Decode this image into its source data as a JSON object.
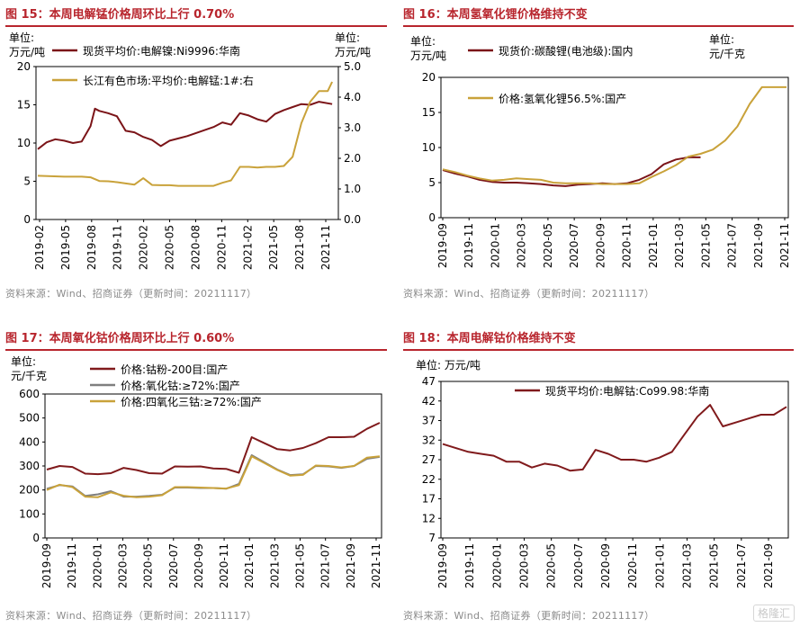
{
  "source": "资料来源：Wind、招商证券（更新时间：20211117）",
  "watermark": "格隆汇",
  "colors": {
    "title": "#b8252d",
    "dark_red": "#7b1418",
    "gold": "#c9a23a",
    "grey": "#7f7f7f",
    "brown_red": "#801a1c"
  },
  "chart_data": [
    {
      "id": "fig15",
      "type": "line",
      "title": "图 15：本周电解锰价格周环比上行 0.70%",
      "unit_left": [
        "单位:",
        "万元/吨"
      ],
      "unit_right": [
        "单位:",
        "万元/吨"
      ],
      "x_ticks": [
        "2019-02",
        "2019-05",
        "2019-08",
        "2019-11",
        "2020-02",
        "2020-05",
        "2020-08",
        "2020-11",
        "2021-02",
        "2021-05",
        "2021-08",
        "2021-11"
      ],
      "ylim": [
        0,
        20
      ],
      "y_ticks": [
        0,
        5,
        10,
        15,
        20
      ],
      "y2lim": [
        0,
        5
      ],
      "y2_ticks": [
        "0.0",
        "1.0",
        "2.0",
        "3.0",
        "4.0",
        "5.0"
      ],
      "series": [
        {
          "name": "现货平均价:电解镍:Ni9996:华南",
          "axis": "left",
          "color": "#7b1418",
          "x": [
            0,
            1,
            2,
            3,
            4,
            5,
            6,
            6.5,
            7,
            8,
            9,
            10,
            11,
            12,
            13,
            14,
            15,
            16,
            17,
            18,
            19,
            20,
            21,
            22,
            23,
            24,
            25,
            26,
            27,
            28,
            29,
            30,
            31,
            32,
            33.5
          ],
          "y": [
            9.2,
            10.1,
            10.5,
            10.3,
            10.0,
            10.2,
            12.2,
            14.5,
            14.2,
            13.9,
            13.5,
            11.6,
            11.4,
            10.8,
            10.4,
            9.6,
            10.3,
            10.6,
            10.9,
            11.3,
            11.7,
            12.1,
            12.7,
            12.4,
            13.9,
            13.6,
            13.1,
            12.8,
            13.8,
            14.3,
            14.7,
            15.1,
            15.0,
            15.4,
            15.1
          ]
        },
        {
          "name": "长江有色市场:平均价:电解锰:1#:右",
          "axis": "right",
          "color": "#c9a23a",
          "x": [
            0,
            3,
            5,
            6,
            7,
            8,
            9,
            10,
            11,
            12,
            13,
            14,
            15,
            16,
            17,
            18,
            19,
            20,
            21,
            22,
            23,
            24,
            25,
            26,
            27,
            28,
            29,
            30,
            31,
            32,
            33,
            33.5
          ],
          "y": [
            1.43,
            1.4,
            1.4,
            1.38,
            1.26,
            1.25,
            1.22,
            1.18,
            1.14,
            1.35,
            1.13,
            1.12,
            1.12,
            1.1,
            1.1,
            1.1,
            1.1,
            1.1,
            1.2,
            1.28,
            1.72,
            1.72,
            1.7,
            1.72,
            1.72,
            1.75,
            2.05,
            3.15,
            3.85,
            4.2,
            4.2,
            4.5
          ]
        }
      ]
    },
    {
      "id": "fig16",
      "type": "line",
      "title": "图 16：本周氢氧化锂价格维持不变",
      "unit_left": [
        "单位:",
        "万元/吨"
      ],
      "unit_right": [
        "单位:",
        "元/千克"
      ],
      "x_ticks": [
        "2019-09",
        "2019-11",
        "2020-01",
        "2020-03",
        "2020-05",
        "2020-07",
        "2020-09",
        "2020-11",
        "2021-01",
        "2021-03",
        "2021-05",
        "2021-07",
        "2021-09",
        "2021-11"
      ],
      "ylim": [
        0,
        20
      ],
      "y_ticks": [
        0,
        5,
        10,
        15,
        20
      ],
      "series": [
        {
          "name": "现货价:碳酸锂(电池级):国内",
          "color": "#7b1418",
          "x": [
            0,
            1,
            2,
            3,
            4,
            5,
            6,
            7,
            8,
            9,
            10,
            11,
            12,
            13,
            14,
            15,
            16,
            17,
            18,
            19,
            20,
            21
          ],
          "y": [
            6.8,
            6.3,
            5.9,
            5.4,
            5.1,
            5.0,
            5.0,
            4.9,
            4.8,
            4.6,
            4.5,
            4.7,
            4.8,
            4.9,
            4.8,
            4.9,
            5.4,
            6.2,
            7.6,
            8.3,
            8.6,
            8.6
          ]
        },
        {
          "name": "价格:氢氧化锂56.5%:国产",
          "color": "#c9a23a",
          "x": [
            0,
            1,
            2,
            3,
            4,
            5,
            6,
            7,
            8,
            9,
            10,
            11,
            12,
            13,
            14,
            15,
            16,
            17,
            18,
            19,
            20,
            21,
            22,
            23,
            24,
            25,
            26,
            27,
            28
          ],
          "y": [
            6.9,
            6.5,
            6.0,
            5.6,
            5.3,
            5.4,
            5.6,
            5.5,
            5.4,
            5.0,
            4.9,
            4.9,
            4.9,
            4.8,
            4.8,
            4.8,
            4.9,
            5.8,
            6.6,
            7.5,
            8.7,
            9.1,
            9.7,
            11.0,
            13.0,
            16.2,
            18.6,
            18.6,
            18.6
          ]
        }
      ]
    },
    {
      "id": "fig17",
      "type": "line",
      "title": "图 17：本周氧化钴价格周环比上行 0.60%",
      "unit_left": [
        "单位:",
        "元/千克"
      ],
      "x_ticks": [
        "2019-09",
        "2019-11",
        "2020-01",
        "2020-03",
        "2020-05",
        "2020-07",
        "2020-09",
        "2020-11",
        "2021-01",
        "2021-03",
        "2021-05",
        "2021-07",
        "2021-09",
        "2021-11"
      ],
      "ylim": [
        0,
        600
      ],
      "y_ticks": [
        0,
        100,
        200,
        300,
        400,
        500,
        600
      ],
      "series": [
        {
          "name": "价格:钴粉-200目:国产",
          "color": "#801a1c",
          "x": [
            0,
            1,
            2,
            3,
            4,
            5,
            6,
            7,
            8,
            9,
            10,
            11,
            12,
            13,
            14,
            15,
            16,
            17,
            18,
            19,
            20,
            21,
            22,
            23,
            24,
            25,
            26
          ],
          "y": [
            285,
            300,
            296,
            268,
            266,
            270,
            292,
            283,
            270,
            268,
            298,
            297,
            298,
            290,
            288,
            272,
            420,
            395,
            370,
            365,
            375,
            395,
            420,
            420,
            422,
            455,
            480
          ]
        },
        {
          "name": "价格:氧化钴:≥72%:国产",
          "color": "#7f7f7f",
          "x": [
            0,
            1,
            2,
            3,
            4,
            5,
            6,
            7,
            8,
            9,
            10,
            11,
            12,
            13,
            14,
            15,
            16,
            17,
            18,
            19,
            20,
            21,
            22,
            23,
            24,
            25,
            26
          ],
          "y": [
            205,
            220,
            215,
            175,
            182,
            195,
            172,
            172,
            175,
            180,
            210,
            210,
            208,
            208,
            205,
            225,
            345,
            315,
            285,
            262,
            265,
            300,
            298,
            292,
            300,
            330,
            338
          ]
        },
        {
          "name": "价格:四氧化三钴:≥72%:国产",
          "color": "#c9a23a",
          "x": [
            0,
            1,
            2,
            3,
            4,
            5,
            6,
            7,
            8,
            9,
            10,
            11,
            12,
            13,
            14,
            15,
            16,
            17,
            18,
            19,
            20,
            21,
            22,
            23,
            24,
            25,
            26
          ],
          "y": [
            200,
            222,
            212,
            172,
            170,
            190,
            176,
            170,
            172,
            178,
            212,
            212,
            210,
            208,
            206,
            220,
            340,
            312,
            283,
            260,
            263,
            302,
            300,
            294,
            300,
            335,
            340
          ]
        }
      ]
    },
    {
      "id": "fig18",
      "type": "line",
      "title": "图 18：本周电解钴价格维持不变",
      "unit_left": [
        "单位:  万元/吨"
      ],
      "x_ticks": [
        "2019-09",
        "2019-11",
        "2020-01",
        "2020-03",
        "2020-05",
        "2020-07",
        "2020-09",
        "2020-11",
        "2021-01",
        "2021-03",
        "2021-05",
        "2021-07",
        "2021-09"
      ],
      "ylim": [
        7,
        47
      ],
      "y_ticks": [
        7,
        12,
        17,
        22,
        27,
        32,
        37,
        42,
        47
      ],
      "series": [
        {
          "name": "现货平均价:电解钴:Co99.98:华南",
          "color": "#801a1c",
          "x": [
            0,
            1,
            2,
            3,
            4,
            5,
            6,
            7,
            8,
            9,
            10,
            11,
            12,
            13,
            14,
            15,
            16,
            17,
            18,
            19,
            20,
            21,
            22,
            23,
            24,
            25,
            26,
            27
          ],
          "y": [
            31,
            30,
            29,
            28.5,
            28,
            26.5,
            26.5,
            25,
            26,
            25.5,
            24.2,
            24.5,
            29.5,
            28.5,
            27,
            27,
            26.5,
            27.5,
            29,
            33.5,
            38,
            41,
            35.5,
            36.5,
            37.5,
            38.5,
            38.5,
            40.5
          ]
        }
      ]
    }
  ]
}
